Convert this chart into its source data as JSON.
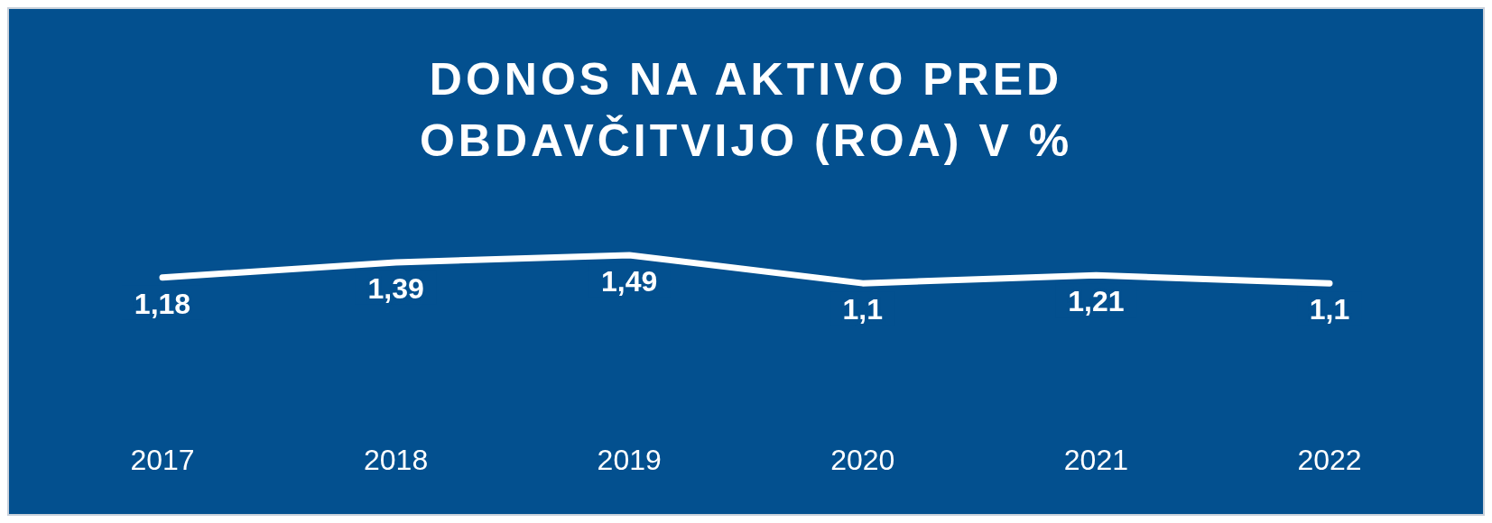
{
  "chart_data": {
    "type": "line",
    "title": "DONOS NA AKTIVO PRED OBDAVČITVIJO (ROA) V %",
    "categories": [
      "2017",
      "2018",
      "2019",
      "2020",
      "2021",
      "2022"
    ],
    "series": [
      {
        "color": "#ffffff",
        "values": [
          1.18,
          1.39,
          1.49,
          1.1,
          1.21,
          1.1
        ],
        "value_labels": [
          "1,18",
          "1,39",
          "1,49",
          "1,1",
          "1,21",
          "1,1"
        ]
      }
    ]
  }
}
